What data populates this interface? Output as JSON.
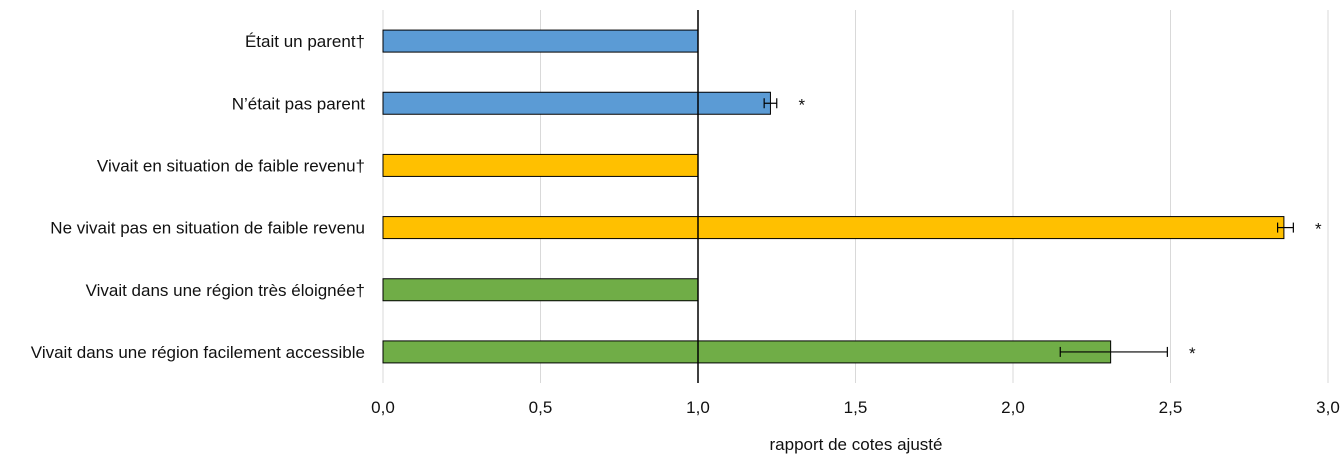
{
  "chart_data": {
    "type": "bar",
    "orientation": "horizontal",
    "categories": [
      "Était un parent†",
      "N’était pas parent",
      "Vivait en situation de faible revenu†",
      "Ne vivait pas en situation de faible revenu",
      "Vivait dans une région très éloignée†",
      "Vivait dans une région facilement accessible"
    ],
    "values": [
      1.0,
      1.23,
      1.0,
      2.86,
      1.0,
      2.31
    ],
    "error_low": [
      null,
      1.21,
      null,
      2.84,
      null,
      2.15
    ],
    "error_high": [
      null,
      1.25,
      null,
      2.89,
      null,
      2.49
    ],
    "significance": [
      "",
      "*",
      "",
      "*",
      "",
      "*"
    ],
    "bar_colors": [
      "#5b9bd5",
      "#5b9bd5",
      "#ffc000",
      "#ffc000",
      "#70ad47",
      "#70ad47"
    ],
    "reference_line": 1.0,
    "xlabel": "rapport de cotes ajusté",
    "ylabel": "",
    "xlim": [
      0,
      3
    ],
    "x_ticks": [
      "0,0",
      "0,5",
      "1,0",
      "1,5",
      "2,0",
      "2,5",
      "3,0"
    ],
    "grid": "vertical",
    "legend": "none"
  }
}
